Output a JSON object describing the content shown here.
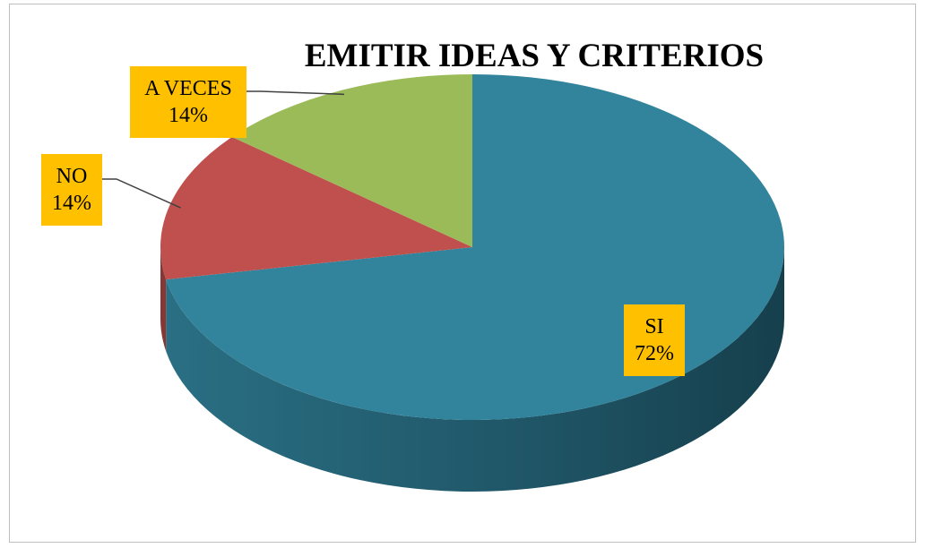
{
  "chart_data": {
    "type": "pie",
    "variant": "3d",
    "title": "EMITIR IDEAS Y CRITERIOS",
    "slices": [
      {
        "label": "SI",
        "value": 72,
        "value_label": "72%",
        "color": "#31849b"
      },
      {
        "label": "NO",
        "value": 14,
        "value_label": "14%",
        "color": "#c0504d"
      },
      {
        "label": "A VECES",
        "value": 14,
        "value_label": "14%",
        "color": "#9bbb59"
      }
    ],
    "label_box_color": "#ffc000",
    "legend": "none"
  }
}
